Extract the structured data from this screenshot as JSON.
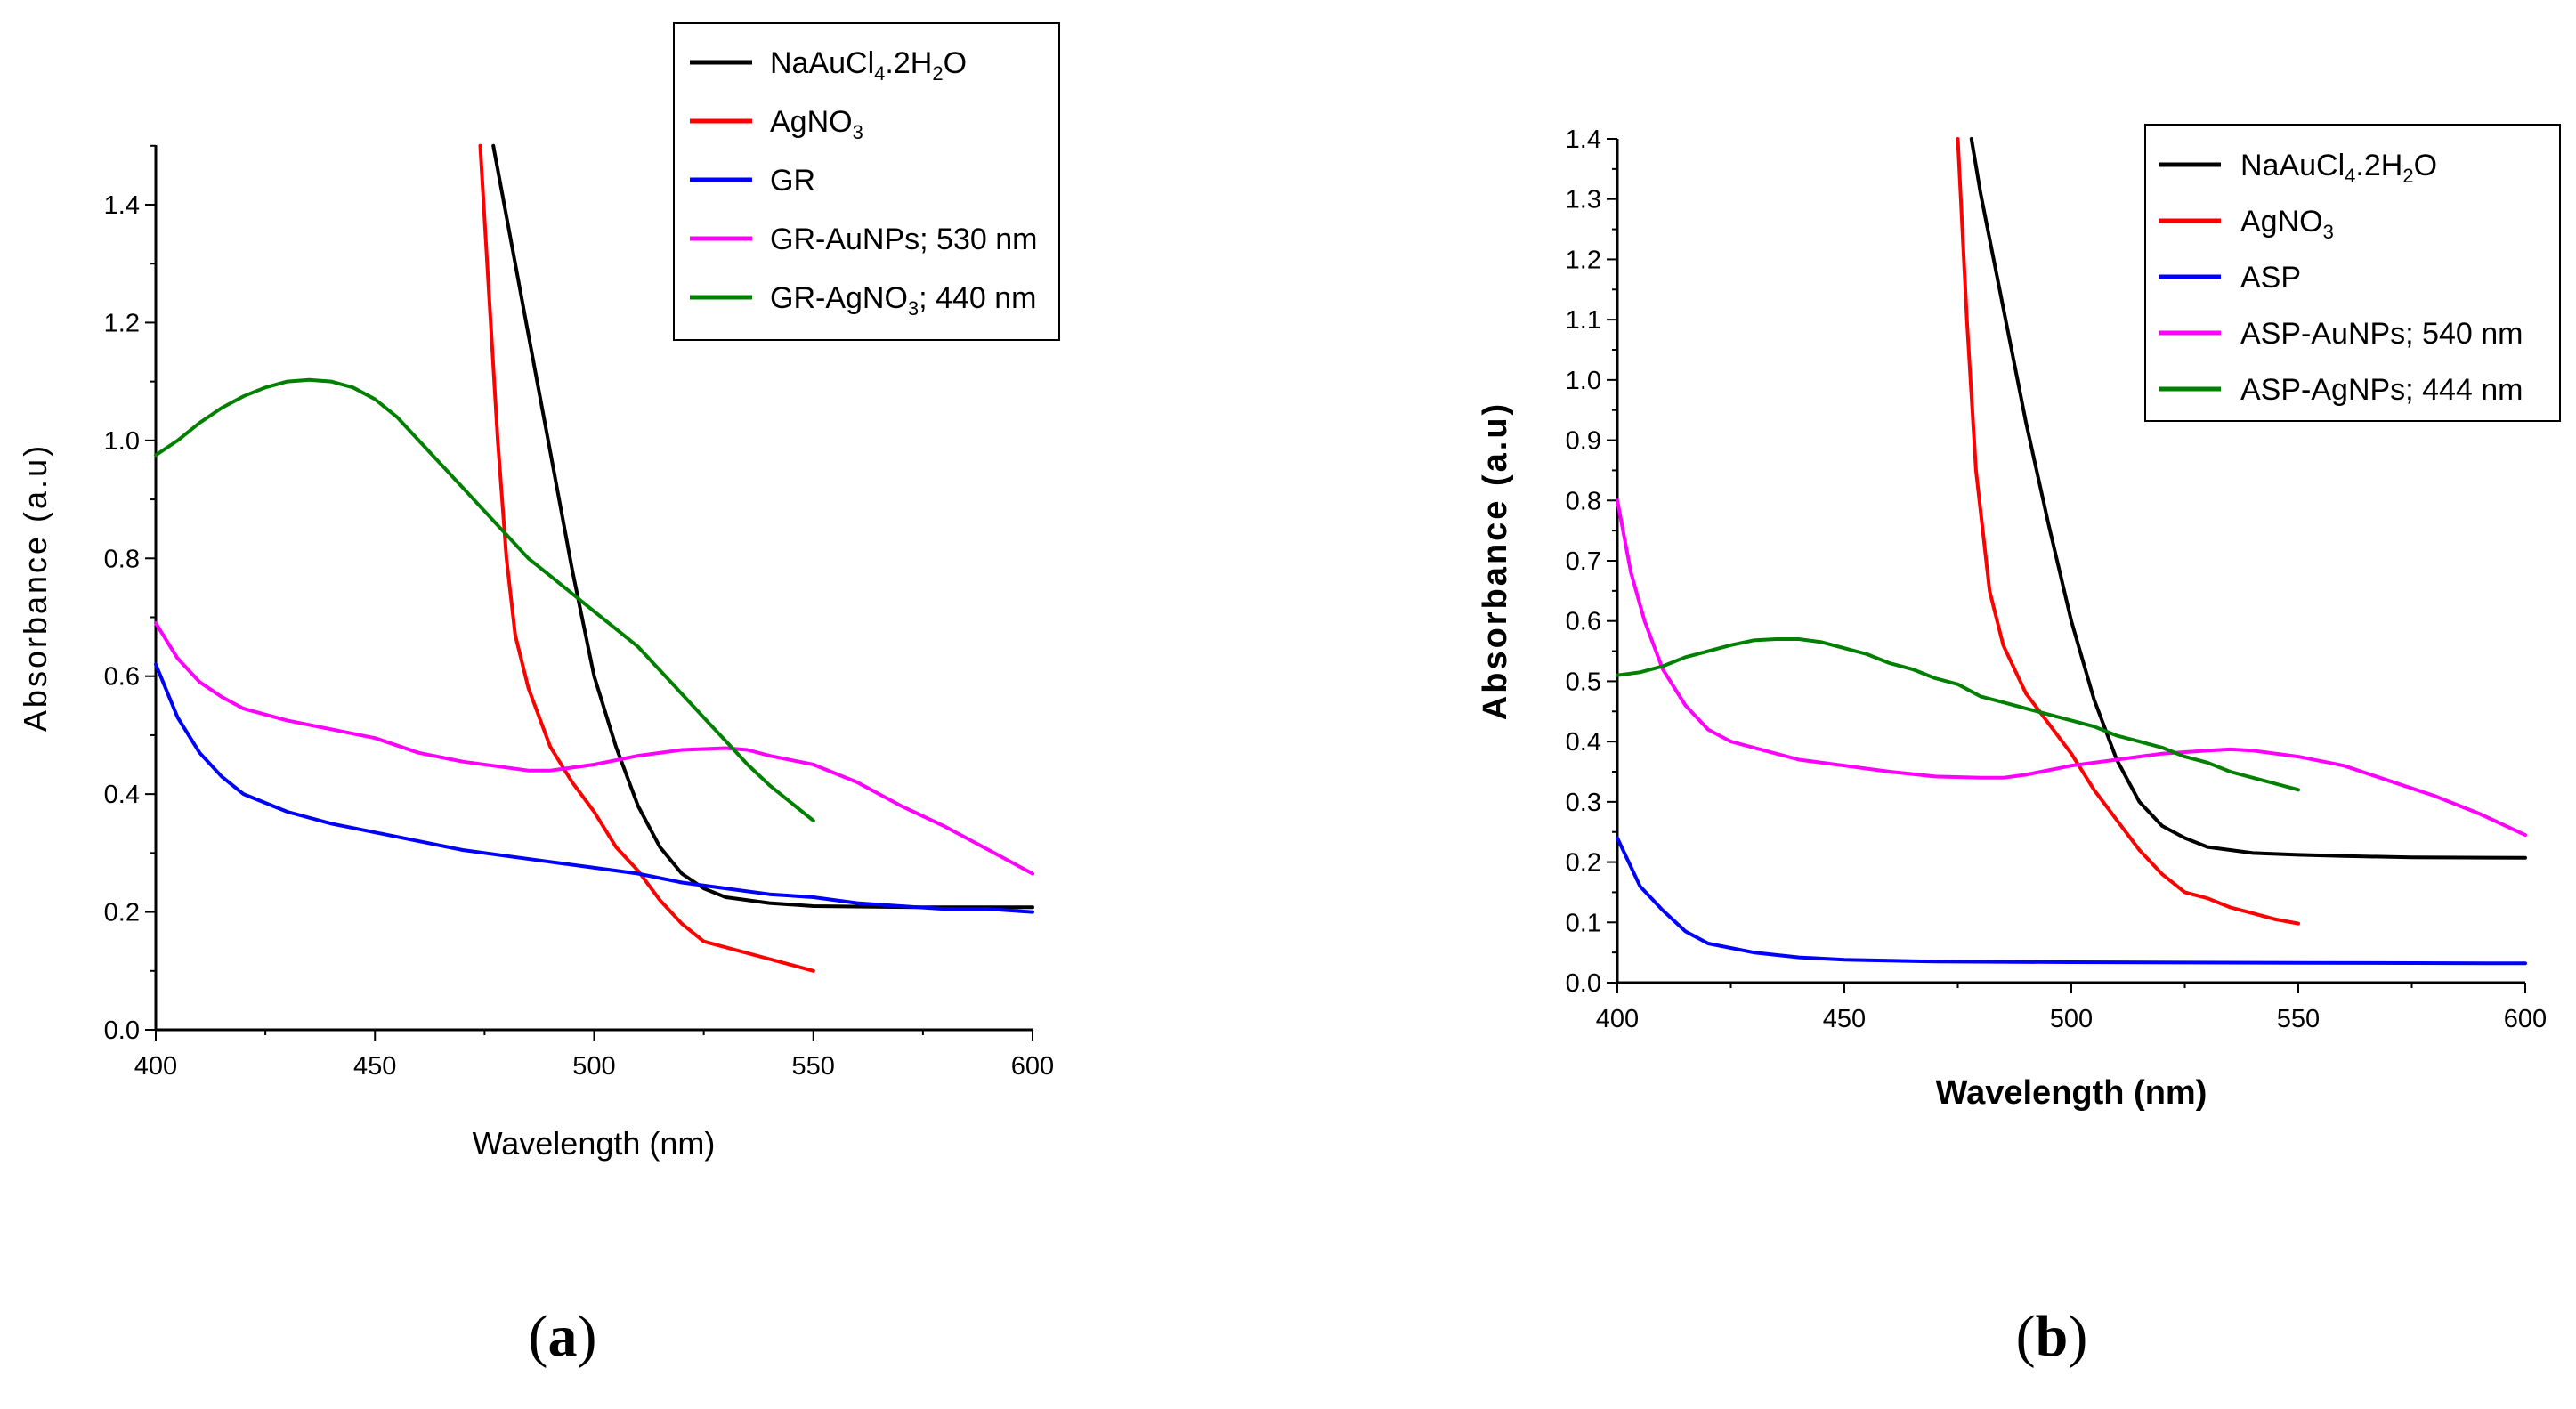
{
  "figure": {
    "panels": [
      {
        "id": "a",
        "caption_open": "(",
        "caption_letter": "a",
        "caption_close": ")"
      },
      {
        "id": "b",
        "caption_open": "(",
        "caption_letter": "b",
        "caption_close": ")"
      }
    ]
  },
  "chart_data": [
    {
      "type": "line",
      "panel": "a",
      "xlabel": "Wavelength (nm)",
      "ylabel": "Absorbance (a.u)",
      "xlim": [
        400,
        600
      ],
      "ylim": [
        0,
        1.5
      ],
      "x_ticks": [
        400,
        450,
        500,
        550,
        600
      ],
      "y_ticks": [
        0.0,
        0.2,
        0.4,
        0.6,
        0.8,
        1.0,
        1.2,
        1.4
      ],
      "y_tick_labels": [
        "0.0",
        "0.2",
        "0.4",
        "0.6",
        "0.8",
        "1.0",
        "1.2",
        "1.4"
      ],
      "legend_position": "top-right",
      "series": [
        {
          "name": "NaAuCl4.2H2O",
          "legend_parts": [
            [
              "NaAuCl",
              ""
            ],
            [
              "4",
              "sub"
            ],
            [
              ".2H",
              ""
            ],
            [
              "2",
              "sub"
            ],
            [
              "O",
              ""
            ]
          ],
          "color": "#000000",
          "points": [
            [
              477,
              1.5
            ],
            [
              480,
              1.38
            ],
            [
              485,
              1.18
            ],
            [
              490,
              0.98
            ],
            [
              495,
              0.78
            ],
            [
              500,
              0.6
            ],
            [
              505,
              0.48
            ],
            [
              510,
              0.38
            ],
            [
              515,
              0.31
            ],
            [
              520,
              0.265
            ],
            [
              525,
              0.24
            ],
            [
              530,
              0.225
            ],
            [
              540,
              0.215
            ],
            [
              550,
              0.21
            ],
            [
              575,
              0.208
            ],
            [
              600,
              0.208
            ]
          ]
        },
        {
          "name": "AgNO3",
          "legend_parts": [
            [
              "AgNO",
              ""
            ],
            [
              "3",
              "sub"
            ]
          ],
          "color": "#ff0000",
          "points": [
            [
              474,
              1.5
            ],
            [
              476,
              1.25
            ],
            [
              478,
              1.0
            ],
            [
              480,
              0.8
            ],
            [
              482,
              0.67
            ],
            [
              485,
              0.58
            ],
            [
              490,
              0.48
            ],
            [
              495,
              0.42
            ],
            [
              500,
              0.37
            ],
            [
              505,
              0.31
            ],
            [
              510,
              0.27
            ],
            [
              515,
              0.22
            ],
            [
              520,
              0.18
            ],
            [
              525,
              0.15
            ],
            [
              530,
              0.14
            ],
            [
              540,
              0.12
            ],
            [
              550,
              0.1
            ]
          ]
        },
        {
          "name": "GR",
          "legend_parts": [
            [
              "GR",
              ""
            ]
          ],
          "color": "#0000ff",
          "points": [
            [
              400,
              0.62
            ],
            [
              405,
              0.53
            ],
            [
              410,
              0.47
            ],
            [
              415,
              0.43
            ],
            [
              420,
              0.4
            ],
            [
              430,
              0.37
            ],
            [
              440,
              0.35
            ],
            [
              450,
              0.335
            ],
            [
              460,
              0.32
            ],
            [
              470,
              0.305
            ],
            [
              480,
              0.295
            ],
            [
              490,
              0.285
            ],
            [
              500,
              0.275
            ],
            [
              510,
              0.265
            ],
            [
              520,
              0.25
            ],
            [
              530,
              0.24
            ],
            [
              540,
              0.23
            ],
            [
              550,
              0.225
            ],
            [
              560,
              0.215
            ],
            [
              570,
              0.21
            ],
            [
              580,
              0.205
            ],
            [
              590,
              0.205
            ],
            [
              600,
              0.2
            ]
          ]
        },
        {
          "name": "GR-AuNPs; 530 nm",
          "legend_parts": [
            [
              "GR-AuNPs; 530 nm",
              ""
            ]
          ],
          "color": "#ff00ff",
          "points": [
            [
              400,
              0.69
            ],
            [
              405,
              0.63
            ],
            [
              410,
              0.59
            ],
            [
              415,
              0.565
            ],
            [
              420,
              0.545
            ],
            [
              425,
              0.535
            ],
            [
              430,
              0.525
            ],
            [
              440,
              0.51
            ],
            [
              450,
              0.495
            ],
            [
              460,
              0.47
            ],
            [
              470,
              0.455
            ],
            [
              480,
              0.445
            ],
            [
              485,
              0.44
            ],
            [
              490,
              0.44
            ],
            [
              500,
              0.45
            ],
            [
              510,
              0.465
            ],
            [
              520,
              0.475
            ],
            [
              530,
              0.478
            ],
            [
              535,
              0.475
            ],
            [
              540,
              0.465
            ],
            [
              550,
              0.45
            ],
            [
              560,
              0.42
            ],
            [
              570,
              0.38
            ],
            [
              580,
              0.345
            ],
            [
              590,
              0.305
            ],
            [
              600,
              0.265
            ]
          ]
        },
        {
          "name": "GR-AgNO3; 440 nm",
          "legend_parts": [
            [
              "GR-AgNO",
              ""
            ],
            [
              "3",
              "sub"
            ],
            [
              "; 440 nm",
              ""
            ]
          ],
          "color": "#008000",
          "points": [
            [
              400,
              0.975
            ],
            [
              405,
              1.0
            ],
            [
              410,
              1.03
            ],
            [
              415,
              1.055
            ],
            [
              420,
              1.075
            ],
            [
              425,
              1.09
            ],
            [
              430,
              1.1
            ],
            [
              435,
              1.103
            ],
            [
              440,
              1.1
            ],
            [
              445,
              1.09
            ],
            [
              450,
              1.07
            ],
            [
              455,
              1.04
            ],
            [
              460,
              1.0
            ],
            [
              465,
              0.96
            ],
            [
              470,
              0.92
            ],
            [
              475,
              0.88
            ],
            [
              480,
              0.84
            ],
            [
              485,
              0.8
            ],
            [
              490,
              0.77
            ],
            [
              495,
              0.74
            ],
            [
              500,
              0.71
            ],
            [
              505,
              0.68
            ],
            [
              510,
              0.65
            ],
            [
              515,
              0.61
            ],
            [
              520,
              0.57
            ],
            [
              525,
              0.53
            ],
            [
              530,
              0.49
            ],
            [
              535,
              0.45
            ],
            [
              540,
              0.415
            ],
            [
              545,
              0.385
            ],
            [
              550,
              0.355
            ]
          ]
        }
      ]
    },
    {
      "type": "line",
      "panel": "b",
      "xlabel": "Wavelength (nm)",
      "ylabel": "Absorbance (a.u)",
      "xlim": [
        400,
        600
      ],
      "ylim": [
        0,
        1.4
      ],
      "x_ticks": [
        400,
        450,
        500,
        550,
        600
      ],
      "y_ticks": [
        0.0,
        0.1,
        0.2,
        0.3,
        0.4,
        0.5,
        0.6,
        0.7,
        0.8,
        0.9,
        1.0,
        1.1,
        1.2,
        1.3,
        1.4
      ],
      "y_tick_labels": [
        "0.0",
        "0.1",
        "0.2",
        "0.3",
        "0.4",
        "0.5",
        "0.6",
        "0.7",
        "0.8",
        "0.9",
        "1.0",
        "1.1",
        "1.2",
        "1.3",
        "1.4"
      ],
      "legend_position": "top-right",
      "series": [
        {
          "name": "NaAuCl4.2H2O",
          "legend_parts": [
            [
              "NaAuCl",
              ""
            ],
            [
              "4",
              "sub"
            ],
            [
              ".2H",
              ""
            ],
            [
              "2",
              "sub"
            ],
            [
              "O",
              ""
            ]
          ],
          "color": "#000000",
          "points": [
            [
              478,
              1.4
            ],
            [
              480,
              1.31
            ],
            [
              485,
              1.12
            ],
            [
              490,
              0.93
            ],
            [
              495,
              0.76
            ],
            [
              500,
              0.6
            ],
            [
              505,
              0.47
            ],
            [
              510,
              0.37
            ],
            [
              515,
              0.3
            ],
            [
              520,
              0.26
            ],
            [
              525,
              0.24
            ],
            [
              530,
              0.225
            ],
            [
              540,
              0.215
            ],
            [
              550,
              0.212
            ],
            [
              560,
              0.21
            ],
            [
              575,
              0.208
            ],
            [
              600,
              0.207
            ]
          ]
        },
        {
          "name": "AgNO3",
          "legend_parts": [
            [
              "AgNO",
              ""
            ],
            [
              "3",
              "sub"
            ]
          ],
          "color": "#ff0000",
          "points": [
            [
              475,
              1.4
            ],
            [
              477,
              1.1
            ],
            [
              479,
              0.85
            ],
            [
              482,
              0.65
            ],
            [
              485,
              0.56
            ],
            [
              490,
              0.48
            ],
            [
              495,
              0.43
            ],
            [
              500,
              0.38
            ],
            [
              505,
              0.32
            ],
            [
              510,
              0.27
            ],
            [
              515,
              0.22
            ],
            [
              520,
              0.18
            ],
            [
              525,
              0.15
            ],
            [
              530,
              0.14
            ],
            [
              535,
              0.125
            ],
            [
              540,
              0.115
            ],
            [
              545,
              0.105
            ],
            [
              550,
              0.098
            ]
          ]
        },
        {
          "name": "ASP",
          "legend_parts": [
            [
              "ASP",
              ""
            ]
          ],
          "color": "#0000ff",
          "points": [
            [
              400,
              0.24
            ],
            [
              405,
              0.16
            ],
            [
              410,
              0.12
            ],
            [
              415,
              0.085
            ],
            [
              420,
              0.065
            ],
            [
              430,
              0.05
            ],
            [
              440,
              0.042
            ],
            [
              450,
              0.038
            ],
            [
              470,
              0.035
            ],
            [
              500,
              0.034
            ],
            [
              550,
              0.033
            ],
            [
              600,
              0.032
            ]
          ]
        },
        {
          "name": "ASP-AuNPs; 540 nm",
          "legend_parts": [
            [
              "ASP-AuNPs; 540 nm",
              ""
            ]
          ],
          "color": "#ff00ff",
          "points": [
            [
              400,
              0.8
            ],
            [
              403,
              0.68
            ],
            [
              406,
              0.6
            ],
            [
              410,
              0.52
            ],
            [
              415,
              0.46
            ],
            [
              420,
              0.42
            ],
            [
              425,
              0.4
            ],
            [
              430,
              0.39
            ],
            [
              440,
              0.37
            ],
            [
              450,
              0.36
            ],
            [
              460,
              0.35
            ],
            [
              470,
              0.342
            ],
            [
              480,
              0.34
            ],
            [
              485,
              0.34
            ],
            [
              490,
              0.345
            ],
            [
              500,
              0.36
            ],
            [
              510,
              0.37
            ],
            [
              520,
              0.38
            ],
            [
              530,
              0.385
            ],
            [
              535,
              0.387
            ],
            [
              540,
              0.385
            ],
            [
              550,
              0.375
            ],
            [
              560,
              0.36
            ],
            [
              570,
              0.335
            ],
            [
              580,
              0.31
            ],
            [
              590,
              0.28
            ],
            [
              600,
              0.245
            ]
          ]
        },
        {
          "name": "ASP-AgNPs; 444 nm",
          "legend_parts": [
            [
              "ASP-AgNPs; 444 nm",
              ""
            ]
          ],
          "color": "#008000",
          "points": [
            [
              400,
              0.51
            ],
            [
              405,
              0.515
            ],
            [
              410,
              0.525
            ],
            [
              415,
              0.54
            ],
            [
              420,
              0.55
            ],
            [
              425,
              0.56
            ],
            [
              430,
              0.568
            ],
            [
              435,
              0.57
            ],
            [
              440,
              0.57
            ],
            [
              445,
              0.565
            ],
            [
              450,
              0.555
            ],
            [
              455,
              0.545
            ],
            [
              460,
              0.53
            ],
            [
              465,
              0.52
            ],
            [
              470,
              0.505
            ],
            [
              475,
              0.495
            ],
            [
              480,
              0.475
            ],
            [
              485,
              0.465
            ],
            [
              490,
              0.455
            ],
            [
              495,
              0.445
            ],
            [
              500,
              0.435
            ],
            [
              505,
              0.425
            ],
            [
              510,
              0.41
            ],
            [
              515,
              0.4
            ],
            [
              520,
              0.39
            ],
            [
              525,
              0.375
            ],
            [
              530,
              0.365
            ],
            [
              535,
              0.35
            ],
            [
              540,
              0.34
            ],
            [
              545,
              0.33
            ],
            [
              550,
              0.32
            ]
          ]
        }
      ]
    }
  ]
}
